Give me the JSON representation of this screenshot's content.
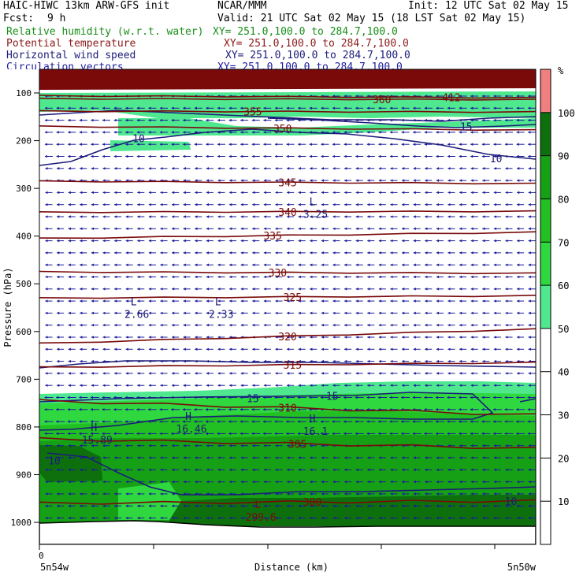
{
  "header": {
    "model": "HAIC-HIWC 13km ARW-GFS init",
    "org": "NCAR/MMM",
    "init": "Init: 12 UTC Sat 02 May 15",
    "fcst_label": "Fcst:",
    "fcst_value": "9 h",
    "valid": "Valid: 21 UTC Sat 02 May 15 (18 LST Sat 02 May 15)"
  },
  "fields": [
    {
      "name": "Relative humidity (w.r.t. water)",
      "xy": "XY= 251.0,100.0 to 284.7,100.0",
      "color": "#1a8f1a"
    },
    {
      "name": "Potential temperature",
      "xy": "XY= 251.0,100.0 to 284.7,100.0",
      "color": "#8b1a1a"
    },
    {
      "name": "Horizontal wind speed",
      "xy": "XY= 251.0,100.0 to 284.7,100.0",
      "color": "#1c1c7a"
    },
    {
      "name": "Circulation vectors",
      "xy": "XY= 251.0,100.0 to 284.7,100.0",
      "color": "#1c1c9c"
    }
  ],
  "colors": {
    "theta": "#7a0a0a",
    "wspd": "#1c1c7a",
    "vectors": "#1c1c9c",
    "terrain": "#ffffff"
  },
  "chart_data": {
    "type": "heatmap",
    "xlabel": "Distance (km)",
    "ylabel": "Pressure (hPa)",
    "x_left_label": "5n54w",
    "x_right_label": "5n50w",
    "x_zero_label": "0",
    "y_ticks": [
      100,
      200,
      300,
      400,
      500,
      600,
      700,
      800,
      900,
      1000
    ],
    "ylim": [
      1050,
      80
    ],
    "colorbar": {
      "unit": "%",
      "ticks": [
        10,
        20,
        30,
        40,
        50,
        60,
        70,
        80,
        90,
        100
      ],
      "bins": [
        {
          "range": [
            50,
            60
          ],
          "color": "#4fe88f"
        },
        {
          "range": [
            60,
            70
          ],
          "color": "#2fd83f"
        },
        {
          "range": [
            70,
            80
          ],
          "color": "#22c022"
        },
        {
          "range": [
            80,
            90
          ],
          "color": "#16a016"
        },
        {
          "range": [
            90,
            100
          ],
          "color": "#0d700d"
        },
        {
          "range": [
            100,
            110
          ],
          "color": "#f08080"
        }
      ]
    },
    "theta_contours": [
      {
        "value": 300,
        "label": "300",
        "p_left": 960,
        "p_right": 955,
        "label_x": 0.55
      },
      {
        "value": 305,
        "label": "305",
        "p_left": 825,
        "p_right": 845,
        "label_x": 0.52
      },
      {
        "value": 310,
        "label": "310",
        "p_left": 745,
        "p_right": 775,
        "label_x": 0.5
      },
      {
        "value": 315,
        "label": "315",
        "p_left": 675,
        "p_right": 665,
        "label_x": 0.51
      },
      {
        "value": 320,
        "label": "320",
        "p_left": 625,
        "p_right": 595,
        "label_x": 0.5
      },
      {
        "value": 325,
        "label": "325",
        "p_left": 530,
        "p_right": 525,
        "label_x": 0.51
      },
      {
        "value": 330,
        "label": "330",
        "p_left": 475,
        "p_right": 478,
        "label_x": 0.48
      },
      {
        "value": 335,
        "label": "335",
        "p_left": 405,
        "p_right": 392,
        "label_x": 0.47
      },
      {
        "value": 340,
        "label": "340",
        "p_left": 350,
        "p_right": 348,
        "label_x": 0.5
      },
      {
        "value": 345,
        "label": "345",
        "p_left": 285,
        "p_right": 290,
        "label_x": 0.5
      },
      {
        "value": 350,
        "label": "350",
        "p_left": 170,
        "p_right": 178,
        "label_x": 0.49
      },
      {
        "value": 355,
        "label": "355",
        "p_left": 138,
        "p_right": 140,
        "label_x": 0.43
      },
      {
        "value": 360,
        "label": "360",
        "p_left": 112,
        "p_right": 114,
        "label_x": 0.69
      },
      {
        "value": 412,
        "label": "412",
        "p_left": 106,
        "p_right": 110,
        "label_x": 0.83
      }
    ],
    "wspd_labels": [
      {
        "label": "10",
        "x": 0.2,
        "p": 195
      },
      {
        "label": "15",
        "x": 0.86,
        "p": 170
      },
      {
        "label": "10",
        "x": 0.92,
        "p": 237
      },
      {
        "label": "15",
        "x": 0.43,
        "p": 740
      },
      {
        "label": "15",
        "x": 0.59,
        "p": 735
      },
      {
        "label": "10",
        "x": 0.03,
        "p": 870
      },
      {
        "label": "10",
        "x": 0.95,
        "p": 955
      }
    ],
    "extrema": [
      {
        "kind": "L",
        "value": "3.25",
        "x": 0.55,
        "p": 345
      },
      {
        "kind": "L",
        "value": "2.66",
        "x": 0.19,
        "p": 555
      },
      {
        "kind": "L",
        "value": "2.33",
        "x": 0.36,
        "p": 555
      },
      {
        "kind": "H",
        "value": "16.46",
        "x": 0.3,
        "p": 795
      },
      {
        "kind": "H",
        "value": "16.1",
        "x": 0.55,
        "p": 800
      },
      {
        "kind": "H",
        "value": "15.89",
        "x": 0.11,
        "p": 818
      },
      {
        "kind": "L",
        "value": "299.6",
        "x": 0.44,
        "p": 980
      }
    ],
    "grid": false
  }
}
